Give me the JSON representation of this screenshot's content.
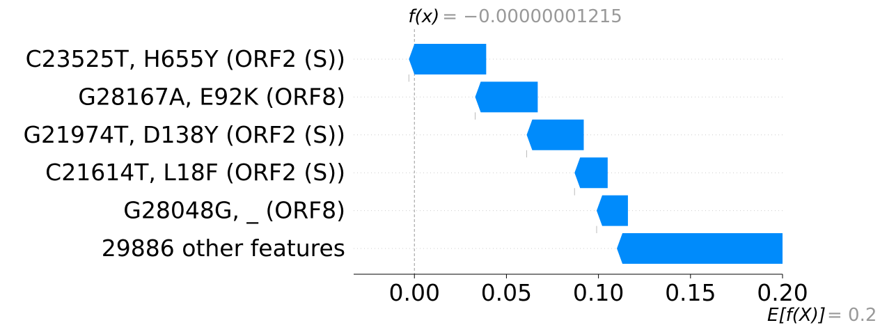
{
  "chart_data": {
    "type": "waterfall",
    "title": "",
    "xlabel": "",
    "ylabel": "",
    "xlim": [
      -0.033,
      0.2
    ],
    "xticks": [
      "0.00",
      "0.05",
      "0.10",
      "0.15",
      "0.20"
    ],
    "xtick_values": [
      0.0,
      0.05,
      0.1,
      0.15,
      0.2
    ],
    "grid": false,
    "bar_color": "#008bfb",
    "fx": {
      "label": "f(x)",
      "value_text": "= −0.00000001215",
      "value": -1.215e-08
    },
    "expected": {
      "label": "E[f(X)]",
      "value_text": "= 0.2",
      "value": 0.2
    },
    "features": [
      {
        "name": "C23525T, H655Y (ORF2 (S))",
        "start": 0.039,
        "end": -0.003
      },
      {
        "name": "G28167A, E92K (ORF8)",
        "start": 0.067,
        "end": 0.033
      },
      {
        "name": "G21974T, D138Y (ORF2 (S))",
        "start": 0.092,
        "end": 0.061
      },
      {
        "name": "C21614T, L18F (ORF2 (S))",
        "start": 0.105,
        "end": 0.087
      },
      {
        "name": "G28048G, _ (ORF8)",
        "start": 0.116,
        "end": 0.099
      },
      {
        "name": "29886 other features",
        "start": 0.2,
        "end": 0.11
      }
    ]
  }
}
